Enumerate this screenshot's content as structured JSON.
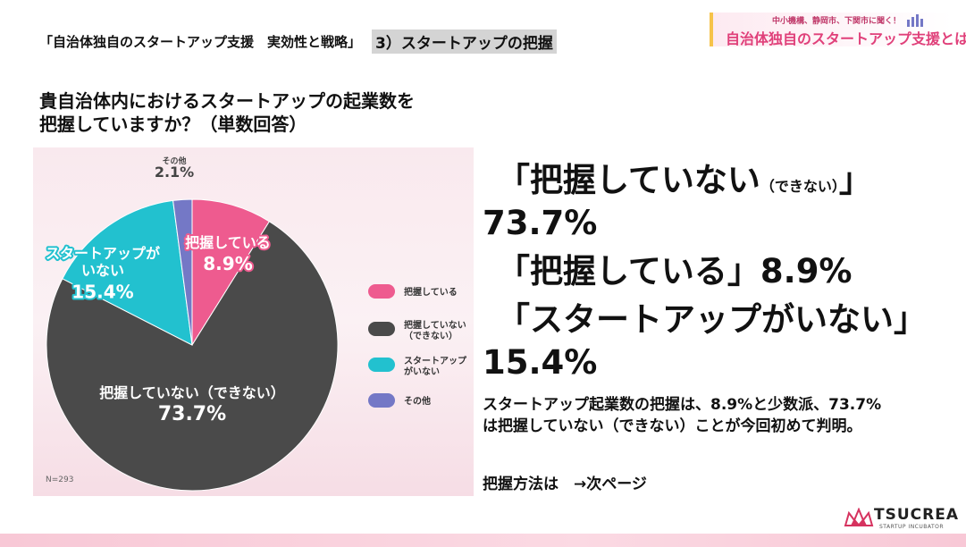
{
  "header": {
    "breadcrumb_title": "「自治体独自のスタートアップ支援　実効性と戦略」",
    "section_label": "3）スタートアップの把握"
  },
  "banner": {
    "subtitle": "中小機構、静岡市、下関市に聞く！",
    "title": "自治体独自のスタートアップ支援とは"
  },
  "question": {
    "line1": "貴自治体内におけるスタートアップの起業数を",
    "line2": "把握していますか？（単数回答）"
  },
  "chart_data": {
    "type": "pie",
    "title": "",
    "n_label": "N=293",
    "slices": [
      {
        "label": "把握している",
        "display_label": "把握している",
        "value": 8.9,
        "value_label": "8.9%",
        "color": "#ee5b8f"
      },
      {
        "label": "把握していない（できない）",
        "display_label": "把握していない（できない）",
        "value": 73.7,
        "value_label": "73.7%",
        "color": "#4a4a4a"
      },
      {
        "label": "スタートアップがいない",
        "display_label": "スタートアップが\nいない",
        "value": 15.4,
        "value_label": "15.4%",
        "color": "#22c1cf"
      },
      {
        "label": "その他",
        "display_label": "その他",
        "value": 2.1,
        "value_label": "2.1%",
        "color": "#7478c6"
      }
    ],
    "legend": {
      "position": "right",
      "entries": [
        {
          "text": "把握している",
          "color": "#ee5b8f"
        },
        {
          "text": "把握していない\n（できない）",
          "color": "#4a4a4a"
        },
        {
          "text": "スタートアップ\nがいない",
          "color": "#22c1cf"
        },
        {
          "text": "その他",
          "color": "#7478c6"
        }
      ]
    }
  },
  "summary": {
    "q1_open": "「把握していない",
    "q1_small": "（できない）",
    "q1_close": "」",
    "q1_value": "73.7%",
    "q2": "「把握している」8.9%",
    "q3": "「スタートアップがいない」",
    "q3_value": "15.4%",
    "note_line1": "スタートアップ起業数の把握は、8.9%と少数派、73.7%",
    "note_line2": "は把握していない（できない）ことが今回初めて判明。",
    "next": "把握方法は　→次ページ"
  },
  "logo": {
    "name": "TSUCREA",
    "tagline": "STARTUP INCUBATOR"
  },
  "colors": {
    "accent_pink": "#ee5b8f",
    "banner_pink": "#e0407a",
    "banner_yellow": "#f6c34a"
  }
}
